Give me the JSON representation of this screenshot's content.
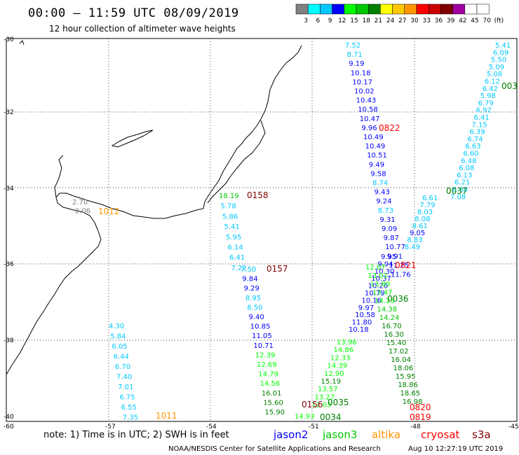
{
  "header": {
    "title": "00:00 – 11:59 UTC 08/09/2019",
    "subtitle": "12 hour collection of altimeter wave heights"
  },
  "scale": {
    "labels": [
      "3",
      "6",
      "9",
      "12",
      "15",
      "18",
      "21",
      "24",
      "27",
      "30",
      "33",
      "36",
      "39",
      "42",
      "45",
      "70",
      "(ft)"
    ],
    "colors": [
      "#808080",
      "#00ffff",
      "#00c8ff",
      "#0000ff",
      "#00ff00",
      "#00c800",
      "#008000",
      "#ffff00",
      "#ffc800",
      "#ff9600",
      "#ff0000",
      "#c80000",
      "#800000",
      "#a000a0",
      "#ffffff",
      "#ffffff"
    ]
  },
  "axes": {
    "lat_labels": [
      "-30",
      "-32",
      "-34",
      "-36",
      "-38",
      "-40"
    ],
    "lon_labels": [
      "-60",
      "-57",
      "-54",
      "-51",
      "-48",
      "-45"
    ]
  },
  "passes": [
    {
      "id": "p1011",
      "time": "1011",
      "time_color": "#ff9600",
      "values": [
        "4.30",
        "5.84",
        "6.05",
        "6.44",
        "6.70",
        "7.40",
        "7.01",
        "6.75",
        "6.55",
        "7.35"
      ],
      "colors": [
        "#00c8ff",
        "#00c8ff",
        "#00c8ff",
        "#00c8ff",
        "#00c8ff",
        "#00c8ff",
        "#00c8ff",
        "#00c8ff",
        "#00c8ff",
        "#00c8ff"
      ]
    },
    {
      "id": "p1012",
      "time": "1012",
      "time_color": "#ff9600",
      "values": [
        "2.70",
        "2.06"
      ],
      "colors": [
        "#808080",
        "#808080"
      ]
    },
    {
      "id": "p0158",
      "time": "0158",
      "time_color": "#800000",
      "values": [
        "18.19",
        "5.78",
        "5.86",
        "5.41",
        "5.95",
        "6.14",
        "6.41",
        "7.22"
      ],
      "colors": [
        "#00c800",
        "#00c8ff",
        "#00c8ff",
        "#00c8ff",
        "#00c8ff",
        "#00c8ff",
        "#00c8ff",
        "#00c8ff"
      ]
    },
    {
      "id": "p0157",
      "time": "0157",
      "time_color": "#800000",
      "values": [
        "7.50",
        "9.84",
        "9.29",
        "8.95",
        "8.50",
        "9.40",
        "10.85",
        "11.05",
        "10.71",
        "12.39",
        "12.69",
        "14.79",
        "14.56",
        "16.01",
        "15.60",
        "15.90"
      ],
      "colors": [
        "#00c8ff",
        "#0000ff",
        "#0000ff",
        "#00c8ff",
        "#00c8ff",
        "#0000ff",
        "#0000ff",
        "#0000ff",
        "#0000ff",
        "#00ff00",
        "#00ff00",
        "#00ff00",
        "#00ff00",
        "#008000",
        "#008000",
        "#008000"
      ]
    },
    {
      "id": "p0822",
      "time": "0822",
      "time_color": "#ff0000",
      "values": [
        "7.52",
        "8.71",
        "9.19",
        "10.18",
        "10.17",
        "10.02",
        "10.43",
        "10.58",
        "10.47",
        "9.96",
        "10.49",
        "10.49",
        "10.51",
        "9.49",
        "9.58",
        "8.74",
        "9.43",
        "9.24",
        "8.73",
        "9.31",
        "9.09",
        "9.87",
        "10.77",
        "9.91",
        "11.25",
        "11.76"
      ],
      "colors": [
        "#00c8ff",
        "#00c8ff",
        "#0000ff",
        "#0000ff",
        "#0000ff",
        "#0000ff",
        "#0000ff",
        "#0000ff",
        "#0000ff",
        "#0000ff",
        "#0000ff",
        "#0000ff",
        "#0000ff",
        "#0000ff",
        "#0000ff",
        "#00c8ff",
        "#0000ff",
        "#0000ff",
        "#00c8ff",
        "#0000ff",
        "#0000ff",
        "#0000ff",
        "#0000ff",
        "#0000ff",
        "#0000ff",
        "#0000ff"
      ]
    },
    {
      "id": "p0821",
      "time": "0821",
      "time_color": "#ff0000",
      "values": [
        "9.95",
        "9.94",
        "10.30",
        "10.37",
        "10.26",
        "10.79",
        "10.16",
        "9.97",
        "10.58",
        "11.80",
        "10.18"
      ],
      "colors": [
        "#0000ff",
        "#0000ff",
        "#0000ff",
        "#0000ff",
        "#0000ff",
        "#0000ff",
        "#0000ff",
        "#0000ff",
        "#0000ff",
        "#0000ff",
        "#0000ff"
      ]
    },
    {
      "id": "p0003",
      "time": "003",
      "time_color": "#008000",
      "values": [
        "5.41",
        "6.09",
        "5.50",
        "5.09",
        "5.08",
        "6.12",
        "6.42",
        "5.98",
        "6.79",
        "6.92",
        "6.41",
        "7.15",
        "6.39",
        "6.74",
        "6.63",
        "6.60",
        "6.48",
        "6.08",
        "6.13",
        "6.21",
        "6.60",
        "7.08"
      ],
      "colors": [
        "#00c8ff",
        "#00c8ff",
        "#00c8ff",
        "#00c8ff",
        "#00c8ff",
        "#00c8ff",
        "#00c8ff",
        "#00c8ff",
        "#00c8ff",
        "#00c8ff",
        "#00c8ff",
        "#00c8ff",
        "#00c8ff",
        "#00c8ff",
        "#00c8ff",
        "#00c8ff",
        "#00c8ff",
        "#00c8ff",
        "#00c8ff",
        "#00c8ff",
        "#00c8ff",
        "#00c8ff"
      ]
    },
    {
      "id": "p0037",
      "time": "0037",
      "time_color": "#008000",
      "values": [
        "6.61",
        "7.79",
        "8.03",
        "8.08",
        "8.61",
        "9.05",
        "8.83",
        "8.49"
      ],
      "colors": [
        "#00c8ff",
        "#00c8ff",
        "#00c8ff",
        "#00c8ff",
        "#00c8ff",
        "#0000ff",
        "#00c8ff",
        "#00c8ff"
      ]
    },
    {
      "id": "p0036",
      "time": "0036",
      "time_color": "#008000",
      "values": [
        "12.07",
        "13.01",
        "13.89",
        "13.47",
        "14.25",
        "14.38",
        "14.24",
        "16.70",
        "16.30",
        "15.40",
        "17.02",
        "16.04",
        "18.06",
        "15.95",
        "18.86",
        "18.65",
        "16.98"
      ],
      "colors": [
        "#00ff00",
        "#00ff00",
        "#00ff00",
        "#00ff00",
        "#00ff00",
        "#00c800",
        "#00c800",
        "#008000",
        "#008000",
        "#008000",
        "#008000",
        "#008000",
        "#008000",
        "#008000",
        "#008000",
        "#008000",
        "#008000"
      ]
    },
    {
      "id": "p0820",
      "time": "0820",
      "time_color": "#ff0000",
      "values": [],
      "colors": []
    },
    {
      "id": "p0819",
      "time": "0819",
      "time_color": "#ff0000",
      "values": [],
      "colors": []
    },
    {
      "id": "p0035",
      "time": "0035",
      "time_color": "#008000",
      "values": [
        "13.96",
        "14.86",
        "12.33",
        "14.39",
        "12.90",
        "15.19",
        "13.57",
        "13.27",
        "12.03"
      ],
      "colors": [
        "#00ff00",
        "#00ff00",
        "#00ff00",
        "#00ff00",
        "#00ff00",
        "#008000",
        "#00ff00",
        "#00ff00",
        "#00ff00"
      ]
    },
    {
      "id": "p0034",
      "time": "0034",
      "time_color": "#008000",
      "values": [
        "14.93"
      ],
      "colors": [
        "#00ff00"
      ]
    },
    {
      "id": "p0156",
      "time": "0156",
      "time_color": "#800000",
      "values": [],
      "colors": []
    }
  ],
  "footer": {
    "note": "note: 1) Time is in UTC; 2) SWH is in feet",
    "satellites": [
      {
        "name": "jason2",
        "color": "#0000ff"
      },
      {
        "name": "jason3",
        "color": "#00c800"
      },
      {
        "name": "altika",
        "color": "#ff9600"
      },
      {
        "name": "cryosat",
        "color": "#ff0000"
      },
      {
        "name": "s3a",
        "color": "#800000"
      }
    ],
    "credit": "NOAA/NESDIS Center for Satellite Applications and Research",
    "timestamp": "Aug 10 12:27:19 UTC 2019"
  }
}
